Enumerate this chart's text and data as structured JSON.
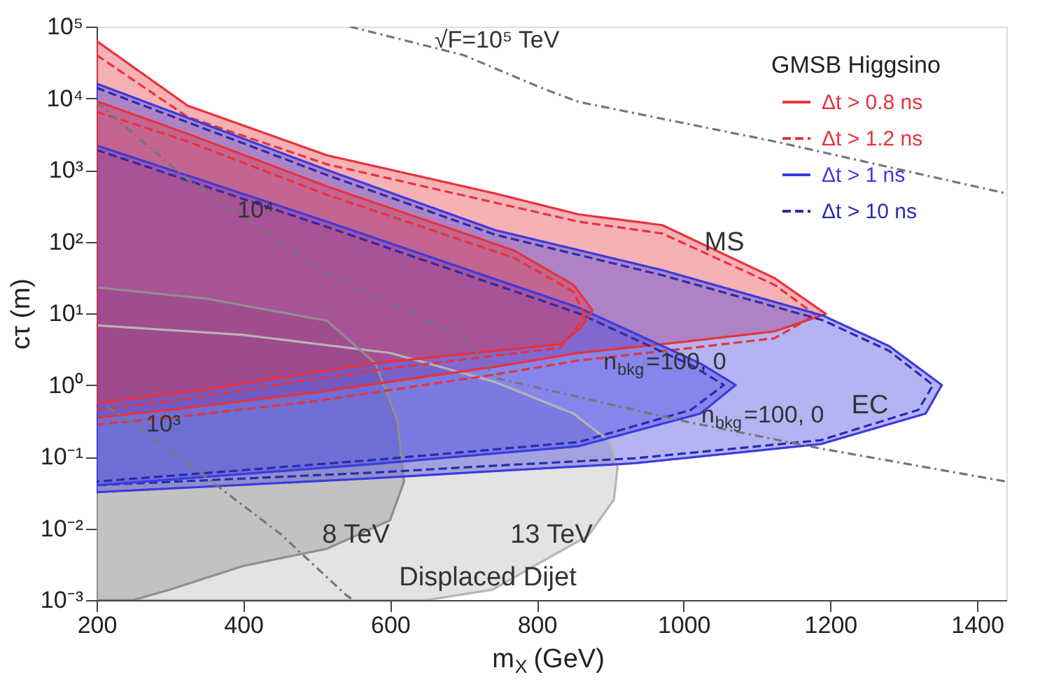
{
  "chart_data": {
    "type": "line",
    "xlabel": "m$_{X}$ (GeV)",
    "ylabel": "cτ (m)",
    "legend_title": "GMSB Higgsino",
    "legend": "top right",
    "log": "y",
    "xlim": [
      200,
      1440
    ],
    "xticks": [
      200,
      400,
      600,
      800,
      1000,
      1200,
      1400
    ],
    "ylim": [
      0.001,
      100000
    ],
    "yticks": [
      {
        "value": 0.001,
        "label": "10⁻³"
      },
      {
        "value": 0.01,
        "label": "10⁻²"
      },
      {
        "value": 0.1,
        "label": "10⁻¹"
      },
      {
        "value": 1,
        "label": "10⁰"
      },
      {
        "value": 10,
        "label": "10¹"
      },
      {
        "value": 100,
        "label": "10²"
      },
      {
        "value": 1000,
        "label": "10³"
      },
      {
        "value": 10000,
        "label": "10⁴"
      },
      {
        "value": 100000,
        "label": "10⁵"
      }
    ],
    "series": [
      {
        "type": "area",
        "color": "#b5b5b5",
        "line_style": "solid",
        "x": [
          200,
          400,
          600,
          743,
          850,
          900,
          910,
          905,
          870,
          806,
          740,
          650,
          200,
          200
        ],
        "values": [
          6.8,
          5.0,
          2.8,
          1.1,
          0.4,
          0.16,
          0.071,
          0.025,
          0.0079,
          0.0034,
          0.0014,
          0.001,
          0.001,
          6.8
        ]
      },
      {
        "type": "area",
        "color": "#8f8f8f",
        "line_style": "solid",
        "x": [
          200,
          350,
          514,
          580,
          610,
          619,
          600,
          514,
          400,
          300,
          250,
          200,
          200
        ],
        "values": [
          23,
          16,
          7.9,
          2.0,
          0.32,
          0.045,
          0.013,
          0.0052,
          0.003,
          0.0014,
          0.001,
          0.001,
          23
        ]
      },
      {
        "type": "area",
        "name": "Δt > 0.8 ns",
        "color": "#e8323c",
        "line_style": "solid",
        "x": [
          200,
          324,
          514,
          743,
          857,
          971,
          1124,
          1194,
          1124,
          1000,
          857,
          743,
          500,
          300,
          200,
          200
        ],
        "values": [
          63000,
          7900,
          1600,
          470,
          240,
          170,
          31,
          9.8,
          5.6,
          4.0,
          2.8,
          1.8,
          0.79,
          0.45,
          0.35,
          63000
        ]
      },
      {
        "name": "Δt > 1.2 ns",
        "color": "#e8323c",
        "line_style": "dashed",
        "x": [
          200,
          324,
          514,
          743,
          857,
          971,
          1124,
          1180
        ],
        "values": [
          40000,
          5500,
          1200,
          350,
          190,
          130,
          25,
          9.5
        ]
      },
      {
        "color": "#e8323c",
        "line_style": "dashed",
        "x": [
          200,
          300,
          500,
          743,
          857,
          1000,
          1124,
          1180
        ],
        "values": [
          0.28,
          0.35,
          0.6,
          1.4,
          2.2,
          3.2,
          4.5,
          9.5
        ]
      },
      {
        "type": "area",
        "name": "Δt > 1 ns",
        "color": "#3b3be0",
        "line_style": "solid",
        "x": [
          200,
          514,
          743,
          971,
          1190,
          1280,
          1352,
          1330,
          1187,
          933,
          743,
          577,
          200,
          200
        ],
        "values": [
          16000,
          1000,
          145,
          40,
          9.3,
          3.5,
          1.0,
          0.4,
          0.15,
          0.081,
          0.063,
          0.05,
          0.032,
          16000
        ]
      },
      {
        "name": "Δt > 10 ns",
        "color": "#2a2ab0",
        "line_style": "dashed",
        "x": [
          200,
          514,
          743,
          971,
          1190,
          1280,
          1340,
          1320,
          1187,
          933,
          743,
          577,
          200
        ],
        "values": [
          14000,
          850,
          125,
          34,
          8.0,
          3.0,
          1.0,
          0.45,
          0.17,
          0.095,
          0.075,
          0.06,
          0.04
        ]
      },
      {
        "type": "area",
        "color": "#3b3be0",
        "line_style": "solid",
        "x": [
          200,
          514,
          857,
          1023,
          1071,
          1023,
          857,
          577,
          200,
          200
        ],
        "values": [
          2200,
          190,
          12,
          2.0,
          1.0,
          0.4,
          0.14,
          0.079,
          0.04,
          2200
        ]
      },
      {
        "color": "#2a2ab0",
        "line_style": "dashed",
        "x": [
          200,
          514,
          857,
          1010,
          1055,
          1010,
          857,
          577,
          200
        ],
        "values": [
          1900,
          160,
          10,
          1.9,
          1.0,
          0.45,
          0.16,
          0.09,
          0.045
        ]
      },
      {
        "type": "area",
        "color": "#e8323c",
        "line_style": "solid",
        "x": [
          200,
          324,
          514,
          768,
          850,
          876,
          860,
          832,
          577,
          324,
          200,
          200
        ],
        "values": [
          9100,
          3200,
          590,
          76,
          25,
          11,
          6.3,
          3.7,
          2.0,
          0.79,
          0.56,
          9100
        ]
      },
      {
        "color": "#e8323c",
        "line_style": "dashed",
        "x": [
          200,
          324,
          514,
          768,
          850,
          865
        ],
        "values": [
          6500,
          2500,
          450,
          60,
          20,
          9.5
        ]
      },
      {
        "color": "#e8323c",
        "line_style": "dashed",
        "x": [
          200,
          324,
          577,
          832,
          850,
          865
        ],
        "values": [
          0.45,
          0.65,
          1.6,
          3.3,
          5.5,
          9.5
        ]
      },
      {
        "color": "#777777",
        "line_style": "dashdot",
        "x": [
          545,
          700,
          806,
          857,
          1124,
          1440
        ],
        "values": [
          100000,
          40000,
          14000,
          8900,
          2500,
          470
        ]
      },
      {
        "color": "#777777",
        "line_style": "dashdot",
        "x": [
          200,
          324,
          514,
          705,
          743,
          996,
          1187,
          1440
        ],
        "values": [
          8700,
          740,
          36,
          4.3,
          1.26,
          0.32,
          0.13,
          0.045
        ]
      },
      {
        "color": "#777777",
        "line_style": "dashdot",
        "x": [
          215,
          324,
          451,
          539,
          550
        ],
        "values": [
          0.5,
          0.081,
          0.0083,
          0.0012,
          0.001
        ]
      }
    ],
    "annotations": [
      {
        "text": "√F=10⁵ TeV",
        "x": 750,
        "y": 24000
      },
      {
        "text": "10⁴",
        "x": 420,
        "y": 160
      },
      {
        "text": "10³",
        "x": 250,
        "y": 0.28
      },
      "MS",
      "EC",
      {
        "text": "n$_{bkg}$=100, 0",
        "x": 950,
        "y": 4.3
      },
      {
        "text": "n$_{bkg}$=100, 0",
        "x": 1110,
        "y": 0.2
      },
      "8 TeV",
      "13 TeV",
      "Displaced Dijet"
    ]
  }
}
